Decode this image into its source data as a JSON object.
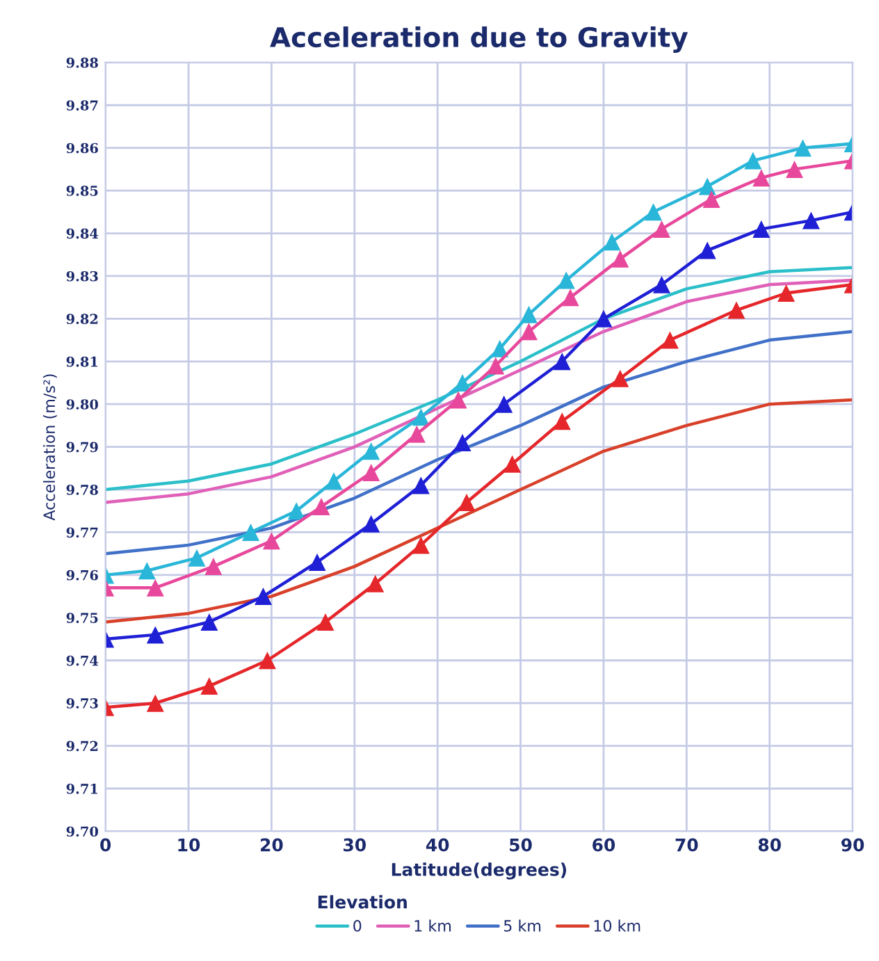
{
  "chart_data": {
    "type": "line",
    "title": "Acceleration due to Gravity",
    "xlabel": "Latitude(degrees)",
    "ylabel": "Acceleration (m/s²)",
    "legend_title": "Elevation",
    "legend": "bottom",
    "grid": true,
    "xlim": [
      0,
      90
    ],
    "xticks": [
      0,
      10,
      20,
      30,
      40,
      50,
      60,
      70,
      80,
      90
    ],
    "ylim": [
      9.7,
      9.88
    ],
    "yticks": [
      {
        "value": 9.7,
        "label": "9.70"
      },
      {
        "value": 9.71,
        "label": "9.71"
      },
      {
        "value": 9.72,
        "label": "9.72"
      },
      {
        "value": 9.73,
        "label": "9.73"
      },
      {
        "value": 9.74,
        "label": "9.74"
      },
      {
        "value": 9.75,
        "label": "9.75"
      },
      {
        "value": 9.76,
        "label": "9.76"
      },
      {
        "value": 9.77,
        "label": "9.77"
      },
      {
        "value": 9.78,
        "label": "9.78"
      },
      {
        "value": 9.79,
        "label": "9.79"
      },
      {
        "value": 9.8,
        "label": "9.80"
      },
      {
        "value": 9.81,
        "label": "9.81"
      },
      {
        "value": 9.82,
        "label": "9.82"
      },
      {
        "value": 9.83,
        "label": "9.83"
      },
      {
        "value": 9.84,
        "label": "9.84"
      },
      {
        "value": 9.85,
        "label": "9.85"
      },
      {
        "value": 9.86,
        "label": "9.86"
      },
      {
        "value": 9.87,
        "label": "9.87"
      },
      {
        "value": 9.88,
        "label": "9.88"
      }
    ],
    "series": [
      {
        "name": "0",
        "color": "#2bbfc9",
        "marker": "none",
        "x": [
          0,
          10,
          20,
          30,
          40,
          50,
          60,
          70,
          80,
          90
        ],
        "values": [
          9.78,
          9.782,
          9.786,
          9.793,
          9.801,
          9.81,
          9.82,
          9.827,
          9.831,
          9.832
        ]
      },
      {
        "name": "1 km",
        "color": "#e060b8",
        "marker": "none",
        "x": [
          0,
          10,
          20,
          30,
          40,
          50,
          60,
          70,
          80,
          90
        ],
        "values": [
          9.777,
          9.779,
          9.783,
          9.79,
          9.799,
          9.808,
          9.817,
          9.824,
          9.828,
          9.829
        ]
      },
      {
        "name": "5 km",
        "color": "#4070c8",
        "marker": "none",
        "x": [
          0,
          10,
          20,
          30,
          40,
          50,
          60,
          70,
          80,
          90
        ],
        "values": [
          9.765,
          9.767,
          9.771,
          9.778,
          9.787,
          9.795,
          9.804,
          9.81,
          9.815,
          9.817
        ]
      },
      {
        "name": "10 km",
        "color": "#d8402a",
        "marker": "none",
        "x": [
          0,
          10,
          20,
          30,
          40,
          50,
          60,
          70,
          80,
          90
        ],
        "values": [
          9.749,
          9.751,
          9.755,
          9.762,
          9.771,
          9.78,
          9.789,
          9.795,
          9.8,
          9.801
        ]
      },
      {
        "color": "#29b6d8",
        "marker": "triangle",
        "x": [
          0,
          5,
          11,
          17.5,
          23,
          27.5,
          32,
          38,
          43,
          47.5,
          51,
          55.5,
          61,
          66,
          72.5,
          78,
          84,
          90
        ],
        "values": [
          9.76,
          9.761,
          9.764,
          9.77,
          9.775,
          9.782,
          9.789,
          9.797,
          9.805,
          9.813,
          9.821,
          9.829,
          9.838,
          9.845,
          9.851,
          9.857,
          9.86,
          9.861
        ]
      },
      {
        "color": "#e8489b",
        "marker": "triangle",
        "x": [
          0,
          6,
          13,
          20,
          26,
          32,
          37.5,
          42.5,
          47,
          51,
          56,
          62,
          67,
          73,
          79,
          83,
          90
        ],
        "values": [
          9.757,
          9.757,
          9.762,
          9.768,
          9.776,
          9.784,
          9.793,
          9.801,
          9.809,
          9.817,
          9.825,
          9.834,
          9.841,
          9.848,
          9.853,
          9.855,
          9.857
        ]
      },
      {
        "color": "#1f1fd6",
        "marker": "triangle",
        "x": [
          0,
          6,
          12.5,
          19,
          25.5,
          32,
          38,
          43,
          48,
          55,
          60,
          67,
          72.5,
          79,
          85,
          90
        ],
        "values": [
          9.745,
          9.746,
          9.749,
          9.755,
          9.763,
          9.772,
          9.781,
          9.791,
          9.8,
          9.81,
          9.82,
          9.828,
          9.836,
          9.841,
          9.843,
          9.845
        ]
      },
      {
        "color": "#e5262a",
        "marker": "triangle",
        "x": [
          0,
          6,
          12.5,
          19.5,
          26.5,
          32.5,
          38,
          43.5,
          49,
          55,
          62,
          68,
          76,
          82,
          90
        ],
        "values": [
          9.729,
          9.73,
          9.734,
          9.74,
          9.749,
          9.758,
          9.767,
          9.777,
          9.786,
          9.796,
          9.806,
          9.815,
          9.822,
          9.826,
          9.828
        ]
      }
    ]
  }
}
